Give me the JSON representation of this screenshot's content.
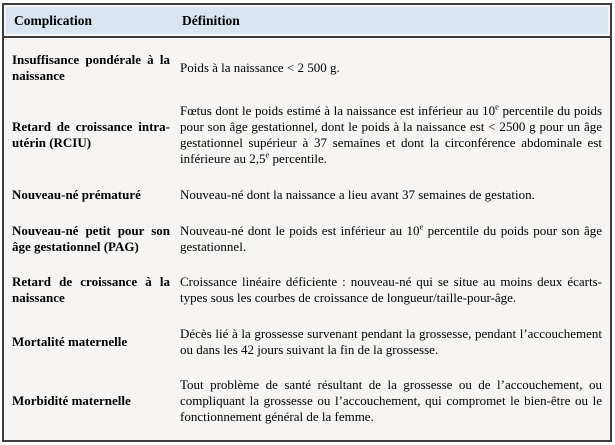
{
  "document": {
    "colors": {
      "border": "#3d3d3d",
      "header_bg": "#dbe5f1",
      "text": "#000000"
    },
    "header": {
      "complication": "Complication",
      "definition": "Définition"
    },
    "rows": [
      {
        "complication": "Insuffisance pondérale à la naissance",
        "definition": [
          {
            "t": "Poids à la naissance < 2 500 g."
          }
        ]
      },
      {
        "complication": "Retard de croissance intra-utérin (RCIU)",
        "definition": [
          {
            "t": "Fœtus dont le poids estimé à la naissance est inférieur au 10"
          },
          {
            "t": "e",
            "sup": true
          },
          {
            "t": " percentile du poids pour son âge gestationnel, dont le poids à la naissance est < 2500 g pour un âge gestationnel supérieur à 37 semaines et dont la circonférence abdominale est inférieure au 2,5"
          },
          {
            "t": "e",
            "sup": true
          },
          {
            "t": " percentile."
          }
        ]
      },
      {
        "complication": "Nouveau-né prématuré",
        "definition": [
          {
            "t": "Nouveau-né dont la naissance a lieu avant 37 semaines de gestation."
          }
        ]
      },
      {
        "complication": "Nouveau-né petit pour son âge gestationnel (PAG)",
        "definition": [
          {
            "t": "Nouveau-né dont le poids est inférieur au 10"
          },
          {
            "t": "e",
            "sup": true
          },
          {
            "t": " percentile du poids pour son âge gestationnel."
          }
        ]
      },
      {
        "complication": "Retard de croissance à la naissance",
        "definition": [
          {
            "t": "Croissance linéaire déficiente : nouveau-né qui se situe au moins deux écarts-types sous les courbes de croissance de longueur/taille-pour-âge."
          }
        ]
      },
      {
        "complication": "Mortalité maternelle",
        "definition": [
          {
            "t": "Décès lié à la grossesse survenant pendant la grossesse, pendant l’accouchement ou dans les 42 jours suivant la fin de la grossesse."
          }
        ]
      },
      {
        "complication": "Morbidité maternelle",
        "definition": [
          {
            "t": "Tout problème de santé résultant de la grossesse ou de l’accouchement, ou compliquant la grossesse ou l’accouchement, qui compromet le bien-être ou le fonctionnement général de la femme."
          }
        ]
      }
    ]
  }
}
